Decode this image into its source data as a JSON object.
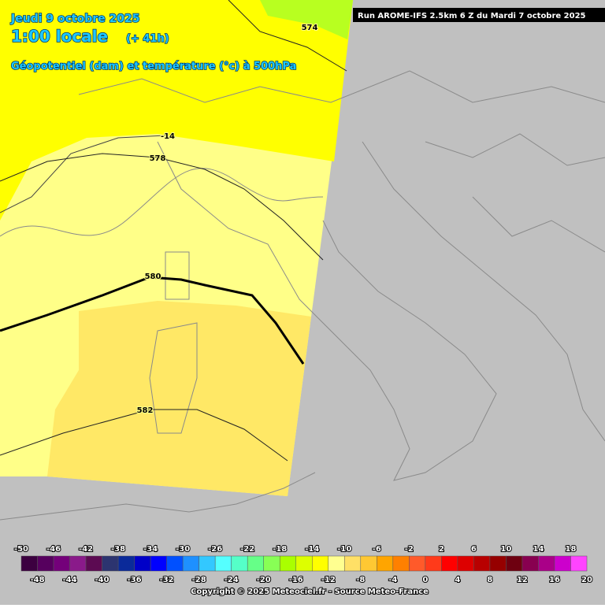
{
  "header": {
    "date": "Jeudi 9 octobre 2025",
    "time": "1:00 locale",
    "lead": "(+ 41h)",
    "field": "Géopotentiel (dam) et température (°c) à 500hPa",
    "run": "Run AROME-IFS 2.5km 6 Z du Mardi 7 octobre 2025"
  },
  "contour_labels": [
    "574",
    "-14",
    "578",
    "580",
    "582"
  ],
  "colorbar": {
    "top_labels": [
      -50,
      -46,
      -42,
      -38,
      -34,
      -30,
      -26,
      -22,
      -18,
      -14,
      -10,
      -6,
      -2,
      2,
      6,
      10,
      14,
      18
    ],
    "bottom_labels": [
      -48,
      -44,
      -40,
      -36,
      -32,
      -28,
      -24,
      -20,
      -16,
      -12,
      -8,
      -4,
      0,
      4,
      8,
      12,
      16,
      20
    ],
    "colors": [
      "#3c0040",
      "#56005e",
      "#74007a",
      "#8a1a8a",
      "#5c0a52",
      "#2c3470",
      "#0a2a9a",
      "#0000c8",
      "#0000ff",
      "#0050ff",
      "#1e90ff",
      "#33c8ff",
      "#55ffff",
      "#55ffc8",
      "#66ff88",
      "#88ff55",
      "#aaff00",
      "#ddff00",
      "#ffff00",
      "#ffff90",
      "#ffe066",
      "#ffc833",
      "#ffa500",
      "#ff8000",
      "#ff5a2a",
      "#ff3a1a",
      "#ff0000",
      "#dd0000",
      "#b80000",
      "#960000",
      "#6e0010",
      "#880050",
      "#aa0088",
      "#cc00cc",
      "#ff44ff"
    ]
  },
  "footer": "Copyright © 2025 Meteociel.fr - Source Meteo-France"
}
